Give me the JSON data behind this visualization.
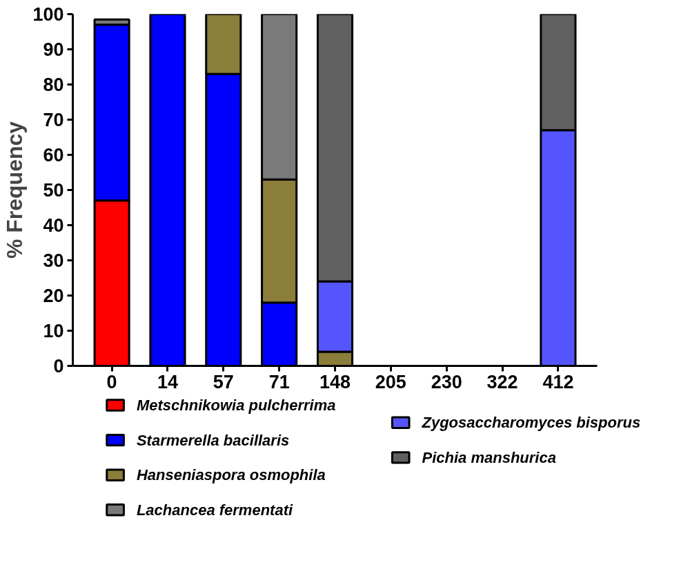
{
  "chart_data": {
    "type": "bar",
    "stacked": true,
    "ylabel": "% Frequency",
    "categories": [
      "0",
      "14",
      "57",
      "71",
      "148",
      "205",
      "230",
      "322",
      "412"
    ],
    "ylim": [
      0,
      100
    ],
    "yticks": [
      0,
      10,
      20,
      30,
      40,
      50,
      60,
      70,
      80,
      90,
      100
    ],
    "grid": false,
    "legend": "bottom",
    "series": [
      {
        "name": "Metschnikowia pulcherrima",
        "color": "#ff0000",
        "values": [
          47,
          0,
          0,
          0,
          0,
          0,
          0,
          0,
          0
        ]
      },
      {
        "name": "Starmerella bacillaris",
        "color": "#0000ff",
        "values": [
          50,
          100,
          83,
          18,
          0,
          0,
          0,
          0,
          0
        ]
      },
      {
        "name": "Hanseniaspora osmophila",
        "color": "#8b7d3a",
        "values": [
          0,
          0,
          17,
          35,
          4,
          0,
          0,
          0,
          0
        ]
      },
      {
        "name": "Lachancea fermentati",
        "color": "#7a7a7a",
        "values": [
          1.5,
          0,
          0,
          47,
          0,
          0,
          0,
          0,
          0
        ]
      },
      {
        "name": "Zygosaccharomyces bisporus",
        "color": "#5555ff",
        "values": [
          0,
          0,
          0,
          0,
          20,
          0,
          0,
          0,
          67
        ]
      },
      {
        "name": "Pichia manshurica",
        "color": "#606060",
        "values": [
          0,
          0,
          0,
          0,
          76,
          0,
          0,
          0,
          33
        ]
      }
    ]
  }
}
